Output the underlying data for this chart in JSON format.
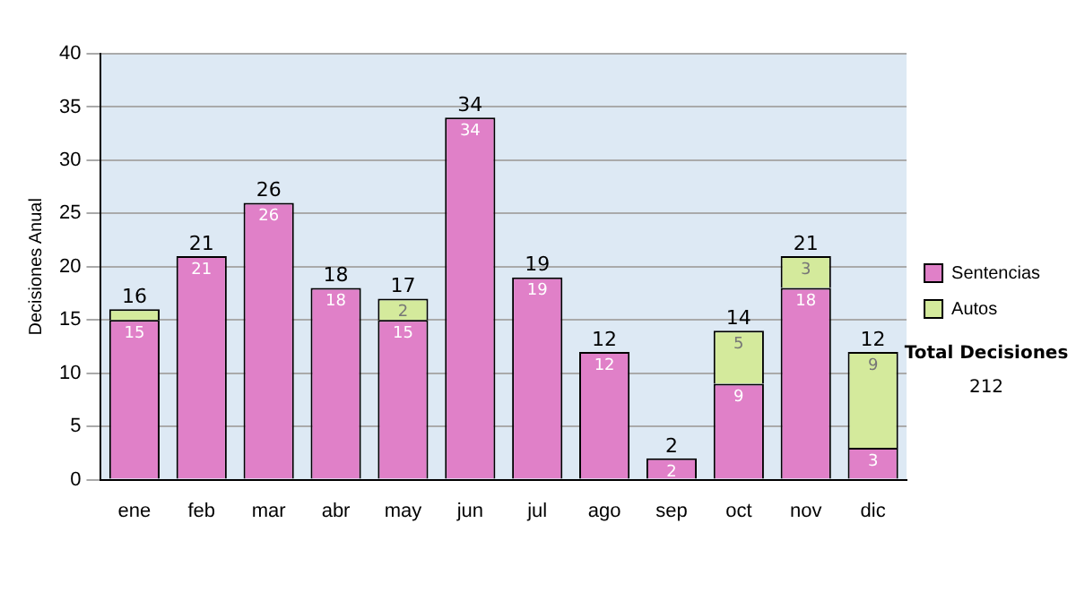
{
  "chart_data": {
    "type": "bar",
    "stacked": true,
    "ylabel": "Decisiones Anual",
    "categories": [
      "ene",
      "feb",
      "mar",
      "abr",
      "may",
      "jun",
      "jul",
      "ago",
      "sep",
      "oct",
      "nov",
      "dic"
    ],
    "series": [
      {
        "name": "Sentencias",
        "color": "#e080c8",
        "values": [
          15,
          21,
          26,
          18,
          15,
          34,
          19,
          12,
          2,
          9,
          18,
          3
        ],
        "value_labels": [
          "15",
          "21",
          "26",
          "18",
          "15",
          "34",
          "19",
          "12",
          "2",
          "9",
          "18",
          "3"
        ]
      },
      {
        "name": "Autos",
        "color": "#d4ea9c",
        "values": [
          1,
          0,
          0,
          0,
          2,
          0,
          0,
          0,
          0,
          5,
          3,
          9
        ],
        "value_labels": [
          null,
          null,
          null,
          null,
          "2",
          null,
          null,
          null,
          null,
          "5",
          "3",
          "9"
        ]
      }
    ],
    "totals": [
      "16",
      "21",
      "26",
      "18",
      "17",
      "34",
      "19",
      "12",
      "2",
      "14",
      "21",
      "12"
    ],
    "ylim": [
      0,
      40
    ],
    "yticks": [
      0,
      5,
      10,
      15,
      20,
      25,
      30,
      35,
      40
    ],
    "grid": "y",
    "legend": "right",
    "annotations": [
      "Total Decisiones",
      "212"
    ]
  }
}
